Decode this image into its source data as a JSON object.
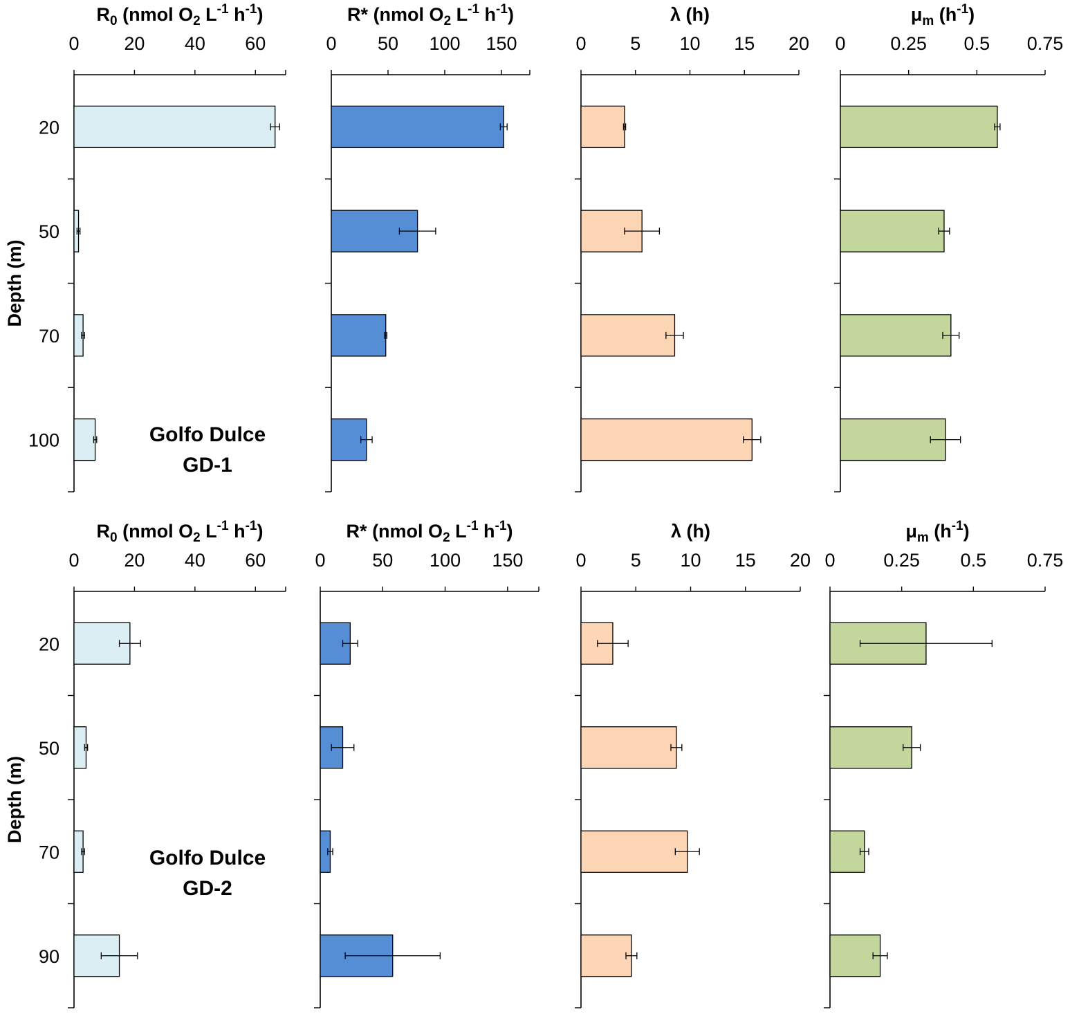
{
  "colors": {
    "r0": "#DAEEF3",
    "rstar": "#558ED5",
    "lambda": "#FCD5B5",
    "mu": "#C3D69B",
    "axis": "#000000"
  },
  "chart_data": [
    {
      "type": "bar",
      "orientation": "horizontal",
      "site": "GD-1",
      "site_label": [
        "Golfo Dulce",
        "GD-1"
      ],
      "ylabel": "Depth (m)",
      "categories": [
        "20",
        "50",
        "70",
        "100"
      ],
      "panels": [
        {
          "key": "r0",
          "title": {
            "main": "R",
            "sub": "0",
            "tail": " (nmol O",
            "sub2": "2",
            "tail2": " L",
            "sup1": "-1",
            "tail3": " h",
            "sup2": "-1",
            "end": ")"
          },
          "xlim": [
            0,
            70
          ],
          "ticks": [
            "0",
            "20",
            "40",
            "60"
          ],
          "tick_values": [
            0,
            20,
            40,
            60
          ],
          "values": [
            66.5,
            1.5,
            3.0,
            7.0
          ],
          "errors": [
            1.5,
            0.5,
            0.5,
            0.5
          ]
        },
        {
          "key": "rstar",
          "title": {
            "main": "R*",
            "sub": "",
            "tail": " (nmol O",
            "sub2": "2",
            "tail2": " L",
            "sup1": "-1",
            "tail3": " h",
            "sup2": "-1",
            "end": ")"
          },
          "xlim": [
            0,
            175
          ],
          "ticks": [
            "0",
            "50",
            "100",
            "150"
          ],
          "tick_values": [
            0,
            50,
            100,
            150
          ],
          "values": [
            152,
            76,
            48,
            31
          ],
          "errors": [
            3,
            16,
            1,
            5
          ]
        },
        {
          "key": "lambda",
          "title": {
            "main": "λ",
            "sub": "",
            "tail": " (h)",
            "sub2": "",
            "tail2": "",
            "sup1": "",
            "tail3": "",
            "sup2": "",
            "end": ""
          },
          "xlim": [
            0,
            20
          ],
          "ticks": [
            "0",
            "5",
            "10",
            "15",
            "20"
          ],
          "tick_values": [
            0,
            5,
            10,
            15,
            20
          ],
          "values": [
            4.0,
            5.6,
            8.6,
            15.7
          ],
          "errors": [
            0.1,
            1.6,
            0.8,
            0.8
          ]
        },
        {
          "key": "mu",
          "title": {
            "main": "μ",
            "sub": "m",
            "tail": " (h",
            "sub2": "",
            "tail2": "",
            "sup1": "-1",
            "tail3": "",
            "sup2": "",
            "end": ")"
          },
          "xlim": [
            0,
            0.75
          ],
          "ticks": [
            "0",
            "0.25",
            "0.5",
            "0.75"
          ],
          "tick_values": [
            0,
            0.25,
            0.5,
            0.75
          ],
          "values": [
            0.575,
            0.38,
            0.405,
            0.385
          ],
          "errors": [
            0.01,
            0.02,
            0.03,
            0.055
          ]
        }
      ]
    },
    {
      "type": "bar",
      "orientation": "horizontal",
      "site": "GD-2",
      "site_label": [
        "Golfo Dulce",
        "GD-2"
      ],
      "ylabel": "Depth (m)",
      "categories": [
        "20",
        "50",
        "70",
        "90"
      ],
      "panels": [
        {
          "key": "r0",
          "title": {
            "main": "R",
            "sub": "0",
            "tail": " (nmol O",
            "sub2": "2",
            "tail2": " L",
            "sup1": "-1",
            "tail3": " h",
            "sup2": "-1",
            "end": ")"
          },
          "xlim": [
            0,
            70
          ],
          "ticks": [
            "0",
            "20",
            "40",
            "60"
          ],
          "tick_values": [
            0,
            20,
            40,
            60
          ],
          "values": [
            18.5,
            4.0,
            3.0,
            15.0
          ],
          "errors": [
            3.5,
            0.5,
            0.5,
            6.0
          ]
        },
        {
          "key": "rstar",
          "title": {
            "main": "R*",
            "sub": "",
            "tail": " (nmol O",
            "sub2": "2",
            "tail2": " L",
            "sup1": "-1",
            "tail3": " h",
            "sup2": "-1",
            "end": ")"
          },
          "xlim": [
            0,
            175
          ],
          "ticks": [
            "0",
            "50",
            "100",
            "150"
          ],
          "tick_values": [
            0,
            50,
            100,
            150
          ],
          "values": [
            24,
            18,
            8,
            58
          ],
          "errors": [
            6,
            9,
            2,
            38
          ]
        },
        {
          "key": "lambda",
          "title": {
            "main": "λ",
            "sub": "",
            "tail": " (h)",
            "sub2": "",
            "tail2": "",
            "sup1": "",
            "tail3": "",
            "sup2": "",
            "end": ""
          },
          "xlim": [
            0,
            20
          ],
          "ticks": [
            "0",
            "5",
            "10",
            "15",
            "20"
          ],
          "tick_values": [
            0,
            5,
            10,
            15,
            20
          ],
          "values": [
            2.9,
            8.7,
            9.7,
            4.6
          ],
          "errors": [
            1.4,
            0.5,
            1.1,
            0.5
          ]
        },
        {
          "key": "mu",
          "title": {
            "main": "μ",
            "sub": "m",
            "tail": " (h",
            "sub2": "",
            "tail2": "",
            "sup1": "-1",
            "tail3": "",
            "sup2": "",
            "end": ")"
          },
          "xlim": [
            0,
            0.75
          ],
          "ticks": [
            "0",
            "0.25",
            "0.5",
            "0.75"
          ],
          "tick_values": [
            0,
            0.25,
            0.5,
            0.75
          ],
          "values": [
            0.335,
            0.285,
            0.12,
            0.175
          ],
          "errors": [
            0.23,
            0.03,
            0.015,
            0.025
          ]
        }
      ]
    }
  ]
}
